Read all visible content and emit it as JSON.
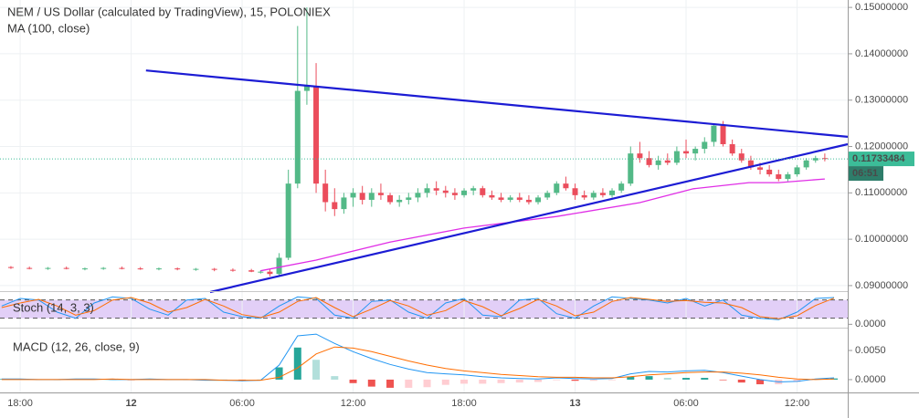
{
  "chart_data": [
    {
      "type": "candlestick",
      "title": "NEM / US Dollar (calculated by TradingView), 15, POLONIEX",
      "up_color": "#53b987",
      "down_color": "#eb4d5c",
      "xlim": [
        -1.09,
        44.74
      ],
      "ylim": [
        0.089,
        0.1516
      ],
      "yticks": [
        {
          "value": 0.09,
          "label": "0.09000000"
        },
        {
          "value": 0.1,
          "label": "0.10000000"
        },
        {
          "value": 0.11,
          "label": "0.11000000"
        },
        {
          "value": 0.12,
          "label": "0.12000000"
        },
        {
          "value": 0.13,
          "label": "0.13000000"
        },
        {
          "value": 0.14,
          "label": "0.14000000"
        },
        {
          "value": 0.15,
          "label": "0.15000000"
        }
      ],
      "grid": true,
      "x": [
        -0.5,
        0.5,
        1.5,
        2.5,
        3.5,
        4.5,
        5.5,
        6.5,
        7.5,
        8.5,
        9.5,
        10.5,
        11.5,
        12.5,
        13,
        13.5,
        14,
        14.5,
        15,
        15.5,
        16,
        16.5,
        17,
        17.5,
        18,
        18.5,
        19,
        19.5,
        20,
        20.5,
        21,
        21.5,
        22,
        22.5,
        23,
        23.5,
        24,
        24.5,
        25,
        25.5,
        26,
        26.5,
        27,
        27.5,
        28,
        28.5,
        29,
        29.5,
        30,
        30.5,
        31,
        31.5,
        32,
        32.5,
        33,
        33.5,
        34,
        34.5,
        35,
        35.5,
        36,
        36.5,
        37,
        37.5,
        38,
        38.5,
        39,
        39.5,
        40,
        40.5,
        41,
        41.5,
        42,
        42.5,
        43,
        43.5
      ],
      "open": [
        0.094,
        0.0938,
        0.0937,
        0.0938,
        0.0936,
        0.0937,
        0.0938,
        0.0937,
        0.0936,
        0.0937,
        0.0935,
        0.0936,
        0.0934,
        0.0933,
        0.093,
        0.093,
        0.0925,
        0.096,
        0.112,
        0.132,
        0.133,
        0.112,
        0.108,
        0.1065,
        0.109,
        0.11,
        0.1085,
        0.11,
        0.1095,
        0.108,
        0.1085,
        0.109,
        0.11,
        0.111,
        0.1105,
        0.11,
        0.1095,
        0.1105,
        0.111,
        0.1095,
        0.109,
        0.1085,
        0.109,
        0.1085,
        0.108,
        0.109,
        0.11,
        0.112,
        0.111,
        0.1095,
        0.109,
        0.11,
        0.1095,
        0.1105,
        0.112,
        0.1185,
        0.1175,
        0.116,
        0.117,
        0.1165,
        0.119,
        0.1185,
        0.1195,
        0.121,
        0.1245,
        0.1205,
        0.1185,
        0.117,
        0.1155,
        0.115,
        0.114,
        0.113,
        0.114,
        0.1155,
        0.117,
        0.1175
      ],
      "high": [
        0.0942,
        0.0941,
        0.094,
        0.0941,
        0.0939,
        0.094,
        0.0941,
        0.094,
        0.0939,
        0.0939,
        0.0938,
        0.0938,
        0.0937,
        0.0936,
        0.0933,
        0.0935,
        0.097,
        0.115,
        0.146,
        0.15,
        0.138,
        0.115,
        0.111,
        0.11,
        0.111,
        0.1115,
        0.111,
        0.112,
        0.11,
        0.1095,
        0.11,
        0.111,
        0.112,
        0.1125,
        0.1115,
        0.111,
        0.111,
        0.1115,
        0.1115,
        0.1105,
        0.11,
        0.1095,
        0.11,
        0.1095,
        0.1095,
        0.1105,
        0.1125,
        0.1135,
        0.112,
        0.1105,
        0.1105,
        0.111,
        0.111,
        0.1125,
        0.12,
        0.121,
        0.119,
        0.118,
        0.1185,
        0.12,
        0.1215,
        0.12,
        0.122,
        0.125,
        0.1255,
        0.1215,
        0.1195,
        0.118,
        0.1165,
        0.116,
        0.115,
        0.1145,
        0.116,
        0.1175,
        0.118,
        0.1185
      ],
      "low": [
        0.0936,
        0.0935,
        0.0934,
        0.0935,
        0.0933,
        0.0934,
        0.0935,
        0.0934,
        0.0933,
        0.0933,
        0.0932,
        0.0931,
        0.093,
        0.0929,
        0.0926,
        0.092,
        0.0922,
        0.0955,
        0.111,
        0.129,
        0.11,
        0.106,
        0.105,
        0.1055,
        0.107,
        0.1075,
        0.107,
        0.1085,
        0.1075,
        0.107,
        0.1075,
        0.108,
        0.109,
        0.1095,
        0.109,
        0.1085,
        0.109,
        0.1095,
        0.109,
        0.1085,
        0.108,
        0.108,
        0.108,
        0.1075,
        0.1075,
        0.1085,
        0.1095,
        0.1105,
        0.1085,
        0.1085,
        0.1085,
        0.109,
        0.109,
        0.11,
        0.1115,
        0.1165,
        0.1155,
        0.115,
        0.116,
        0.116,
        0.1175,
        0.117,
        0.1185,
        0.12,
        0.12,
        0.118,
        0.1165,
        0.115,
        0.114,
        0.1135,
        0.1125,
        0.1125,
        0.1135,
        0.115,
        0.1165,
        0.1168
      ],
      "close": [
        0.0938,
        0.0937,
        0.0938,
        0.0936,
        0.0937,
        0.0938,
        0.0937,
        0.0936,
        0.0937,
        0.0935,
        0.0936,
        0.0934,
        0.0933,
        0.093,
        0.093,
        0.0925,
        0.096,
        0.112,
        0.132,
        0.133,
        0.112,
        0.108,
        0.1065,
        0.109,
        0.11,
        0.1085,
        0.11,
        0.1095,
        0.108,
        0.1085,
        0.109,
        0.11,
        0.111,
        0.1105,
        0.11,
        0.1095,
        0.1105,
        0.111,
        0.1095,
        0.109,
        0.1085,
        0.109,
        0.1085,
        0.108,
        0.109,
        0.11,
        0.112,
        0.111,
        0.1095,
        0.109,
        0.11,
        0.1095,
        0.1105,
        0.112,
        0.1185,
        0.1175,
        0.116,
        0.117,
        0.1165,
        0.119,
        0.1185,
        0.1195,
        0.121,
        0.1245,
        0.1205,
        0.1185,
        0.117,
        0.1155,
        0.115,
        0.114,
        0.113,
        0.114,
        0.1155,
        0.117,
        0.1175,
        0.11733484
      ],
      "series": [
        {
          "name": "MA (100, close)",
          "color": "#e02ee6",
          "x": [
            13,
            16,
            20,
            24,
            29,
            33.5,
            36.4,
            39.4,
            41,
            43.5
          ],
          "values": [
            0.0932,
            0.0955,
            0.0994,
            0.1024,
            0.1049,
            0.1079,
            0.1109,
            0.1122,
            0.1122,
            0.113
          ]
        }
      ],
      "trendlines": [
        {
          "color": "#1c1cd4",
          "x": [
            6.8,
            44.74
          ],
          "values": [
            0.1364,
            0.1221
          ]
        },
        {
          "color": "#1c1cd4",
          "x": [
            10.27,
            44.74
          ],
          "values": [
            0.0886,
            0.1205
          ]
        }
      ],
      "last_price": {
        "value": 0.11733484,
        "label": "0.11733484",
        "color": "#3cbc98"
      },
      "countdown": "06:51"
    },
    {
      "type": "stoch",
      "title": "Stoch (14, 3, 3)",
      "xlim": [
        -1.09,
        44.74
      ],
      "ylim": [
        -5,
        100
      ],
      "yticks": [
        {
          "value": 0,
          "label": "0.0000"
        }
      ],
      "levels": [
        20,
        80
      ],
      "band_color": "#e2cff7",
      "x": [
        -1,
        0,
        1,
        2,
        3,
        4,
        5,
        6,
        7,
        8,
        9,
        10,
        11,
        12,
        13,
        14,
        15,
        16,
        17,
        18,
        19,
        20,
        21,
        22,
        23,
        24,
        25,
        26,
        27,
        28,
        29,
        30,
        31,
        32,
        33,
        34,
        35,
        36,
        37,
        38,
        39,
        40,
        41,
        42,
        43,
        44
      ],
      "series": [
        {
          "color": "#2196f3",
          "values": [
            60,
            85,
            80,
            40,
            20,
            70,
            90,
            85,
            50,
            30,
            80,
            85,
            40,
            25,
            20,
            60,
            90,
            85,
            30,
            20,
            75,
            80,
            40,
            20,
            70,
            85,
            30,
            25,
            80,
            85,
            35,
            20,
            60,
            90,
            85,
            80,
            70,
            85,
            60,
            80,
            30,
            20,
            15,
            40,
            85,
            88
          ]
        },
        {
          "color": "#ff6d00",
          "values": [
            55,
            70,
            82,
            60,
            30,
            45,
            80,
            88,
            70,
            40,
            55,
            82,
            60,
            32,
            22,
            40,
            75,
            88,
            55,
            25,
            50,
            78,
            60,
            30,
            45,
            78,
            58,
            28,
            52,
            82,
            60,
            28,
            40,
            75,
            88,
            82,
            75,
            78,
            72,
            70,
            55,
            25,
            18,
            28,
            62,
            86
          ]
        }
      ]
    },
    {
      "type": "macd",
      "title": "MACD (12, 26, close, 9)",
      "xlim": [
        -1.09,
        44.74
      ],
      "ylim": [
        -0.0022,
        0.0086
      ],
      "yticks": [
        {
          "value": 0,
          "label": "0.0000"
        },
        {
          "value": 0.005,
          "label": "0.0050"
        }
      ],
      "xticks": [
        {
          "value": 0,
          "label": "18:00"
        },
        {
          "value": 6,
          "label": "12"
        },
        {
          "value": 12,
          "label": "06:00"
        },
        {
          "value": 18,
          "label": "12:00"
        },
        {
          "value": 24,
          "label": "18:00"
        },
        {
          "value": 30,
          "label": "13"
        },
        {
          "value": 36,
          "label": "06:00"
        },
        {
          "value": 42,
          "label": "12:00"
        }
      ],
      "x": [
        -1,
        0,
        1,
        2,
        3,
        4,
        5,
        6,
        7,
        8,
        9,
        10,
        11,
        12,
        13,
        14,
        15,
        16,
        17,
        18,
        19,
        20,
        21,
        22,
        23,
        24,
        25,
        26,
        27,
        28,
        29,
        30,
        31,
        32,
        33,
        34,
        35,
        36,
        37,
        38,
        39,
        40,
        41,
        42,
        43,
        44
      ],
      "histogram": {
        "colors": [
          "#26a69a",
          "#b2dfdb",
          "#ffcdd2",
          "#ef5350"
        ],
        "values": [
          0.0001,
          0.0001,
          0,
          0,
          0.0001,
          0.0001,
          0,
          -0.0001,
          0.0001,
          0,
          0,
          -0.0001,
          0,
          -0.0001,
          0,
          0.0021,
          0.0055,
          0.0034,
          0.0006,
          -0.0006,
          -0.0012,
          -0.0014,
          -0.0014,
          -0.0013,
          -0.0009,
          -0.0007,
          -0.0007,
          -0.0006,
          -0.0005,
          -0.0004,
          -0.0001,
          -0.0002,
          -0.0002,
          -0.0001,
          0.0005,
          0.0006,
          0.0003,
          0.0003,
          0.0003,
          -0.0001,
          -0.0005,
          -0.0008,
          -0.0008,
          -0.0004,
          0.0001,
          0.0002
        ]
      },
      "series": [
        {
          "color": "#2196f3",
          "values": [
            0.0001,
            0.0001,
            0,
            0,
            0.0001,
            0.0001,
            0,
            0,
            0.0001,
            0,
            0,
            -0.0001,
            -0.0001,
            -0.0002,
            -0.0001,
            0.0025,
            0.0075,
            0.0078,
            0.0062,
            0.0048,
            0.0036,
            0.0026,
            0.0018,
            0.0012,
            0.001,
            0.0008,
            0.0005,
            0.0003,
            0.0002,
            0.0001,
            0.0003,
            0.0002,
            0.0001,
            0.0002,
            0.001,
            0.0014,
            0.0013,
            0.0015,
            0.0016,
            0.0012,
            0.0006,
            0,
            -0.0004,
            -0.0003,
            0.0001,
            0.0003
          ]
        },
        {
          "color": "#ff6d00",
          "values": [
            0,
            0,
            0,
            0,
            0,
            0,
            0.0001,
            0,
            0,
            0,
            0,
            0,
            -0.0001,
            -0.0001,
            -0.0001,
            0.0004,
            0.002,
            0.0044,
            0.0056,
            0.0054,
            0.0048,
            0.004,
            0.0032,
            0.0025,
            0.0019,
            0.0015,
            0.0012,
            0.0009,
            0.0007,
            0.0005,
            0.0004,
            0.0004,
            0.0003,
            0.0003,
            0.0005,
            0.0008,
            0.001,
            0.0012,
            0.0013,
            0.0013,
            0.0011,
            0.0008,
            0.0004,
            0.0001,
            0,
            0.0001
          ]
        }
      ]
    }
  ]
}
